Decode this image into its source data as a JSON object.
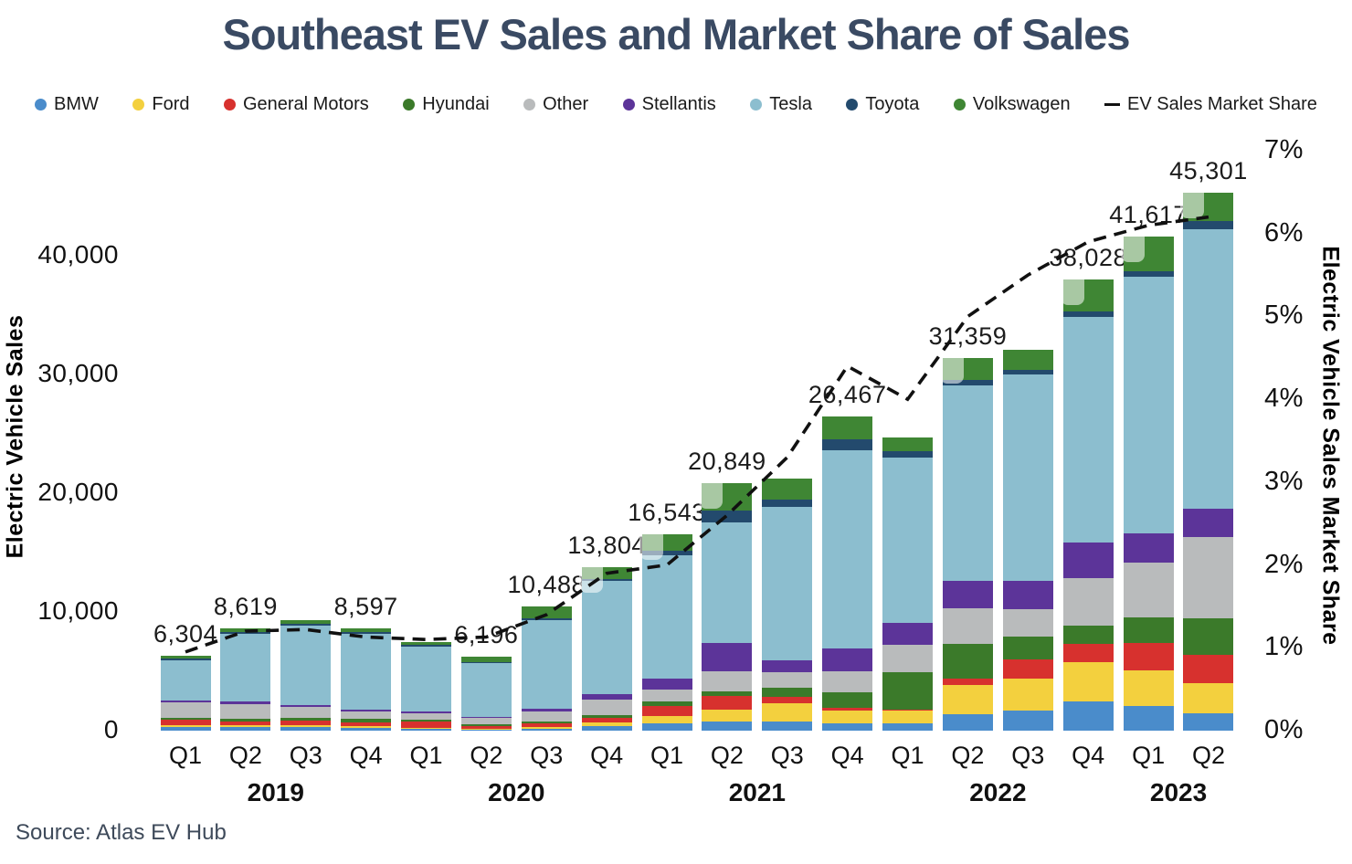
{
  "title": "Southeast EV Sales and Market Share of Sales",
  "source": "Source: Atlas EV Hub",
  "chart_data": {
    "type": "bar",
    "stacked": true,
    "title": "Southeast EV Sales and Market Share of Sales",
    "categories": [
      "Q1",
      "Q2",
      "Q3",
      "Q4",
      "Q1",
      "Q2",
      "Q3",
      "Q4",
      "Q1",
      "Q2",
      "Q3",
      "Q4",
      "Q1",
      "Q2",
      "Q3",
      "Q4",
      "Q1",
      "Q2"
    ],
    "year_groups": [
      {
        "label": "2019",
        "from": 0,
        "to": 3
      },
      {
        "label": "2020",
        "from": 4,
        "to": 7
      },
      {
        "label": "2021",
        "from": 8,
        "to": 11
      },
      {
        "label": "2022",
        "from": 12,
        "to": 15
      },
      {
        "label": "2023",
        "from": 16,
        "to": 17
      }
    ],
    "series": [
      {
        "name": "BMW",
        "color": "#4A8CCB",
        "values": [
          300,
          320,
          290,
          250,
          180,
          100,
          150,
          380,
          640,
          770,
          770,
          640,
          640,
          1410,
          1660,
          2430,
          2100,
          1460
        ]
      },
      {
        "name": "Ford",
        "color": "#F3D03E",
        "values": [
          150,
          160,
          150,
          150,
          80,
          60,
          130,
          330,
          590,
          1020,
          1520,
          1020,
          1020,
          2430,
          2740,
          3330,
          2950,
          2560
        ]
      },
      {
        "name": "General Motors",
        "color": "#D7312E",
        "values": [
          450,
          320,
          430,
          320,
          500,
          250,
          310,
          390,
          820,
          1150,
          560,
          300,
          100,
          560,
          1610,
          1540,
          2360,
          2390
        ]
      },
      {
        "name": "Hyundai",
        "color": "#3B7A2A",
        "values": [
          200,
          210,
          230,
          260,
          200,
          130,
          205,
          230,
          385,
          390,
          770,
          1280,
          3200,
          2890,
          1920,
          1540,
          2150,
          3070
        ]
      },
      {
        "name": "Other",
        "color": "#B9BBBC",
        "values": [
          1250,
          1210,
          870,
          650,
          500,
          520,
          845,
          1300,
          1020,
          1660,
          1280,
          1790,
          2300,
          3020,
          2300,
          4020,
          4600,
          6830
        ]
      },
      {
        "name": "Stellantis",
        "color": "#5C3499",
        "values": [
          180,
          210,
          205,
          130,
          120,
          110,
          180,
          440,
          900,
          2430,
          1020,
          1880,
          1790,
          2280,
          2360,
          3020,
          2480,
          2390
        ]
      },
      {
        "name": "Tesla",
        "color": "#8CBECF",
        "values": [
          3400,
          5750,
          6700,
          6400,
          5500,
          4500,
          7500,
          9550,
          10440,
          10150,
          12900,
          16737,
          13950,
          16459,
          17380,
          18988,
          21567,
          23531
        ]
      },
      {
        "name": "Toyota",
        "color": "#234A6D",
        "values": [
          120,
          130,
          125,
          130,
          120,
          76,
          128,
          184,
          385,
          950,
          640,
          900,
          510,
          460,
          385,
          460,
          510,
          680
        ]
      },
      {
        "name": "Volkswagen",
        "color": "#3F8634",
        "values": [
          254,
          309,
          300,
          307,
          300,
          450,
          1040,
          1000,
          1363,
          2329,
          1790,
          1920,
          1200,
          1850,
          1690,
          2700,
          2900,
          2390
        ]
      }
    ],
    "totals": [
      6304,
      8619,
      9300,
      8597,
      7500,
      6196,
      10488,
      13804,
      16543,
      20849,
      21250,
      26467,
      24710,
      31359,
      32045,
      38028,
      41617,
      45301
    ],
    "total_labels": [
      "6,304",
      "8,619",
      null,
      "8,597",
      null,
      "6,196",
      "10,488",
      "13,804",
      "16,543",
      "20,849",
      null,
      "26,467",
      null,
      "31,359",
      null,
      "38,028",
      "41,617",
      "45,301"
    ],
    "label_callout_indices": [
      7,
      8,
      9,
      13,
      15,
      16,
      17
    ],
    "line": {
      "name": "EV Sales Market Share",
      "color": "#111111",
      "dashed": true,
      "axis": "right",
      "values": [
        0.95,
        1.2,
        1.22,
        1.13,
        1.1,
        1.13,
        1.4,
        1.9,
        2.0,
        2.6,
        3.3,
        4.4,
        4.0,
        5.0,
        5.5,
        5.9,
        6.1,
        6.2
      ]
    },
    "left_axis": {
      "title": "Electric Vehicle Sales",
      "tick_values": [
        0,
        10000,
        20000,
        30000,
        40000
      ],
      "tick_labels": [
        "0",
        "10,000",
        "20,000",
        "30,000",
        "40,000"
      ],
      "range": [
        0,
        48800
      ]
    },
    "right_axis": {
      "title": "Electric Vehicle Sales Market Share",
      "tick_values": [
        0,
        1,
        2,
        3,
        4,
        5,
        6,
        7
      ],
      "tick_labels": [
        "0%",
        "1%",
        "2%",
        "3%",
        "4%",
        "5%",
        "6%",
        "7%"
      ],
      "range": [
        0,
        7
      ]
    },
    "grid": false,
    "legend_position": "top"
  }
}
